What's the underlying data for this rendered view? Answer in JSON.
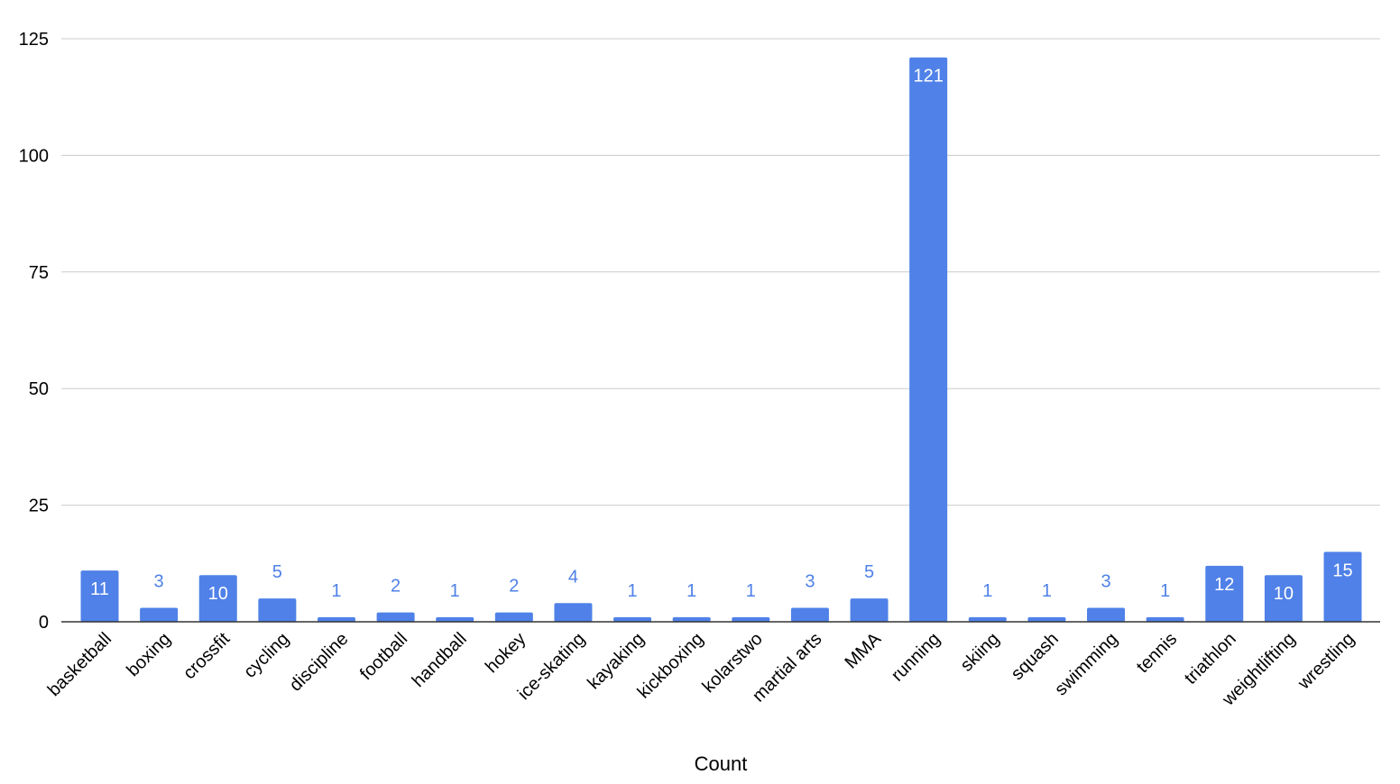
{
  "chart_data": {
    "type": "bar",
    "categories": [
      "basketball",
      "boxing",
      "crossfit",
      "cycling",
      "discipline",
      "football",
      "handball",
      "hokey",
      "ice-skating",
      "kayaking",
      "kickboxing",
      "kolarstwo",
      "martial arts",
      "MMA",
      "running",
      "skiing",
      "squash",
      "swimming",
      "tennis",
      "triathlon",
      "weightlifting",
      "wrestling"
    ],
    "values": [
      11,
      3,
      10,
      5,
      1,
      2,
      1,
      2,
      4,
      1,
      1,
      1,
      3,
      5,
      121,
      1,
      1,
      3,
      1,
      12,
      10,
      15
    ],
    "title": "",
    "xlabel": "Count",
    "ylabel": "",
    "ylim": [
      0,
      125
    ],
    "yticks": [
      0,
      25,
      50,
      75,
      100,
      125
    ],
    "grid": true,
    "legend": "none",
    "bar_color": "#4f81e8",
    "data_label_color": "#4f81e8"
  }
}
